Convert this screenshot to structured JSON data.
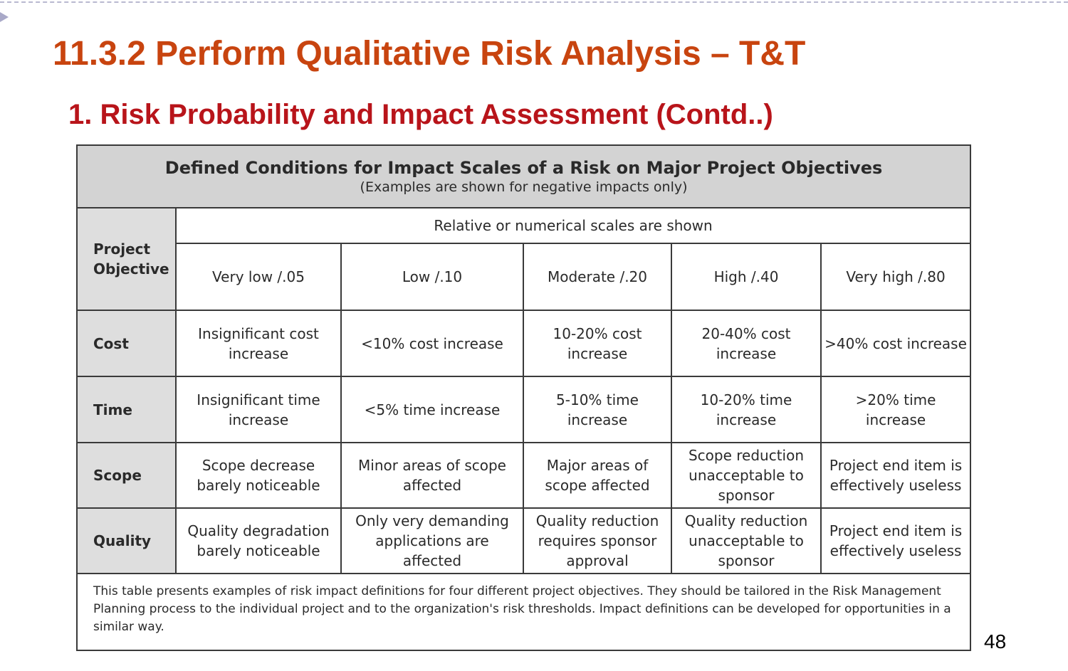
{
  "slide": {
    "title": "11.3.2 Perform Qualitative Risk Analysis – T&T",
    "subtitle": "1. Risk Probability and Impact Assessment (Contd..)",
    "page_number": "48"
  },
  "table": {
    "title": "Defined Conditions for Impact Scales of a Risk on Major Project Objectives",
    "subtitle": "(Examples are shown for negative impacts only)",
    "scale_caption": "Relative or numerical scales are shown",
    "objective_header": "Project Objective",
    "scale_headers": [
      "Very low /.05",
      "Low /.10",
      "Moderate /.20",
      "High /.40",
      "Very high /.80"
    ],
    "rows": [
      {
        "objective": "Cost",
        "cells": [
          "Insignificant cost increase",
          "<10% cost increase",
          "10-20% cost increase",
          "20-40% cost increase",
          ">40% cost increase"
        ]
      },
      {
        "objective": "Time",
        "cells": [
          "Insignificant time increase",
          "<5% time increase",
          "5-10% time increase",
          "10-20% time increase",
          ">20% time increase"
        ]
      },
      {
        "objective": "Scope",
        "cells": [
          "Scope decrease barely noticeable",
          "Minor areas of scope affected",
          "Major areas of scope affected",
          "Scope reduction unacceptable to sponsor",
          "Project end item is effectively useless"
        ]
      },
      {
        "objective": "Quality",
        "cells": [
          "Quality degradation barely noticeable",
          "Only very demanding applications are affected",
          "Quality reduction requires sponsor approval",
          "Quality reduction unacceptable to sponsor",
          "Project end item is effectively useless"
        ]
      }
    ],
    "footnote": "This table presents examples of risk impact definitions for four different project objectives. They should be tailored in the Risk Management Planning process to the individual project and to the organization's risk thresholds. Impact definitions can be developed for opportunities in a similar way."
  }
}
